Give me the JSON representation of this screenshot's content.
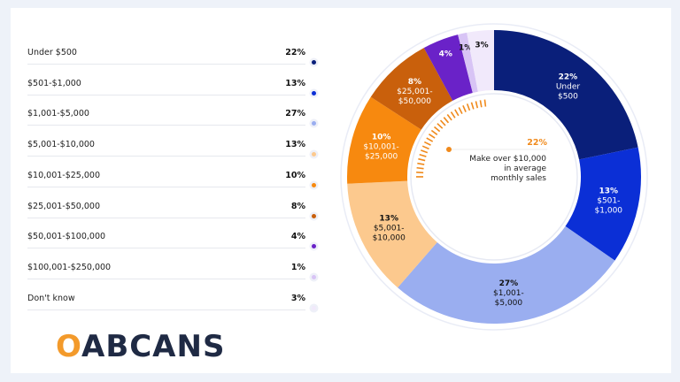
{
  "chart_data": {
    "type": "pie",
    "variant": "donut",
    "categories": [
      "Under $500",
      "$501-$1,000",
      "$1,001-$5,000",
      "$5,001-$10,000",
      "$10,001-$25,000",
      "$25,001-$50,000",
      "$50,001-$100,000",
      "$100,001-$250,000",
      "Don't know"
    ],
    "values": [
      22,
      13,
      27,
      13,
      10,
      8,
      4,
      1,
      3
    ],
    "value_labels": [
      "22%",
      "13%",
      "27%",
      "13%",
      "10%",
      "8%",
      "4%",
      "1%",
      "3%"
    ],
    "slice_labels": [
      [
        "Under",
        "$500"
      ],
      [
        "$501-",
        "$1,000"
      ],
      [
        "$1,001-",
        "$5,000"
      ],
      [
        "$5,001-",
        "$10,000"
      ],
      [
        "$10,001-",
        "$25,000"
      ],
      [
        "$25,001-",
        "$50,000"
      ],
      [],
      [],
      []
    ],
    "colors": [
      "#0a1f7a",
      "#0b2fd6",
      "#9aaef0",
      "#fcc98e",
      "#f7890f",
      "#c9600c",
      "#6a22c8",
      "#d8c4f5",
      "#f1e9fb"
    ],
    "label_colors": [
      "#ffffff",
      "#ffffff",
      "#111111",
      "#111111",
      "#ffffff",
      "#ffffff",
      "#ffffff",
      "#111111",
      "#111111"
    ],
    "legend_placement": "left",
    "center_callout": {
      "value": "22%",
      "text": [
        "Make over $10,000",
        "in average",
        "monthly sales"
      ],
      "color": "#f08a1c"
    }
  },
  "logo": {
    "text_a": "O",
    "text_b": "ABCANS",
    "full": "OABCANS"
  }
}
